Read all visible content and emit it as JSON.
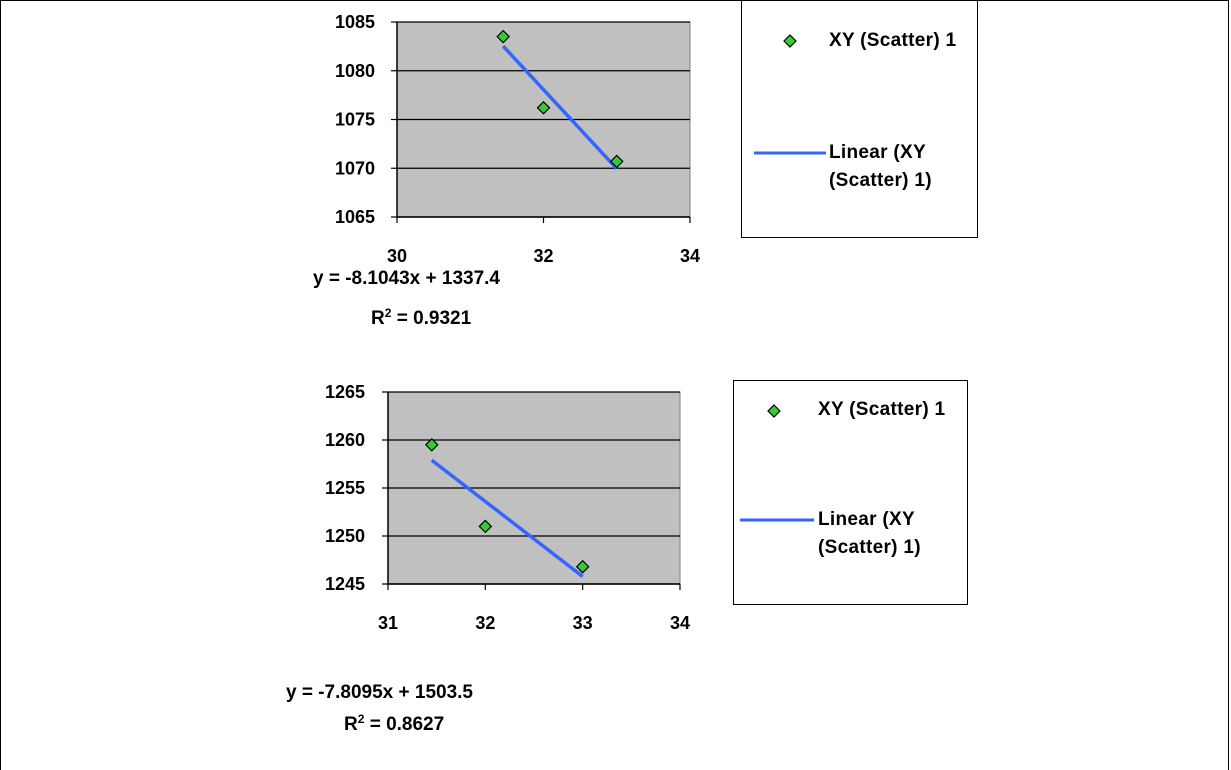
{
  "chart_data": [
    {
      "type": "scatter",
      "x": [
        31.45,
        32,
        33
      ],
      "y": [
        1083.5,
        1076.2,
        1070.7
      ],
      "trendline": {
        "slope": -8.1043,
        "intercept": 1337.4
      },
      "xlim": [
        30,
        34
      ],
      "ylim": [
        1065,
        1085
      ],
      "xticks": [
        "30",
        "32",
        "34"
      ],
      "yticks": [
        "1085",
        "1080",
        "1075",
        "1070",
        "1065"
      ],
      "grid": true,
      "legend_position": "right",
      "legend": {
        "marker_label": "XY (Scatter) 1",
        "line_label": "Linear (XY (Scatter) 1)"
      },
      "equation": "y = -8.1043x + 1337.4",
      "r2_label": "R",
      "r2_sup": "2",
      "r2_value": " = 0.9321"
    },
    {
      "type": "scatter",
      "x": [
        31.45,
        32,
        33
      ],
      "y": [
        1259.5,
        1251.0,
        1246.8
      ],
      "trendline": {
        "slope": -7.8095,
        "intercept": 1503.5
      },
      "xlim": [
        31,
        34
      ],
      "ylim": [
        1245,
        1265
      ],
      "xticks": [
        "31",
        "32",
        "33",
        "34"
      ],
      "yticks": [
        "1265",
        "1260",
        "1255",
        "1250",
        "1245"
      ],
      "grid": true,
      "legend_position": "right",
      "legend": {
        "marker_label": "XY (Scatter) 1",
        "line_label": "Linear (XY (Scatter) 1)"
      },
      "equation": "y = -7.8095x + 1503.5",
      "r2_label": "R",
      "r2_sup": "2",
      "r2_value": " = 0.8627"
    }
  ],
  "colors": {
    "plot_bg": "#c0c0c0",
    "marker_fill": "#33cc33",
    "trendline": "#3366ff",
    "grid": "#000000"
  }
}
